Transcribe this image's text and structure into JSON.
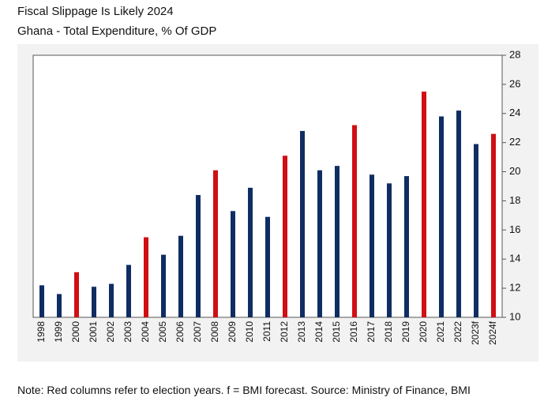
{
  "header": {
    "title": "Fiscal Slippage Is Likely 2024",
    "subtitle": "Ghana - Total Expenditure, % Of GDP"
  },
  "footer": {
    "note": "Note: Red columns refer to election years. f = BMI forecast. Source: Ministry of Finance, BMI"
  },
  "colors": {
    "regular": "#0f2d63",
    "election": "#d00f14",
    "panel": "#f2f2f2"
  },
  "chart_data": {
    "type": "bar",
    "categories": [
      "1998",
      "1999",
      "2000",
      "2001",
      "2002",
      "2003",
      "2004",
      "2005",
      "2006",
      "2007",
      "2008",
      "2009",
      "2010",
      "2011",
      "2012",
      "2013",
      "2014",
      "2015",
      "2016",
      "2017",
      "2018",
      "2019",
      "2020",
      "2021",
      "2022",
      "2023f",
      "2024f"
    ],
    "values": [
      12.2,
      11.6,
      13.1,
      12.1,
      12.3,
      13.6,
      15.5,
      14.3,
      15.6,
      18.4,
      20.1,
      17.3,
      18.9,
      16.9,
      21.1,
      22.8,
      20.1,
      20.4,
      23.2,
      19.8,
      19.2,
      19.7,
      25.5,
      23.8,
      24.2,
      21.9,
      22.6
    ],
    "election_years": [
      "2000",
      "2004",
      "2008",
      "2012",
      "2016",
      "2020",
      "2024f"
    ],
    "y_axis_side": "right",
    "yticks": [
      10,
      12,
      14,
      16,
      18,
      20,
      22,
      24,
      26,
      28
    ],
    "ylim": [
      10,
      28
    ],
    "grid": false,
    "legend": "none"
  }
}
